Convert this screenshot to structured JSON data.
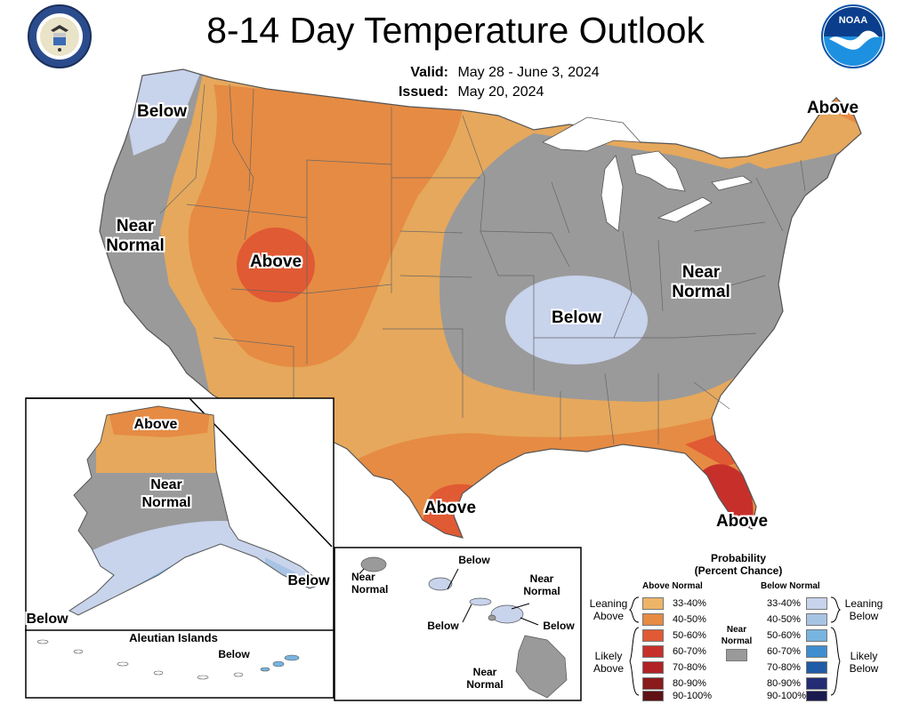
{
  "title": "8-14 Day Temperature Outlook",
  "valid_label": "Valid:",
  "valid_value": "May 28 - June 3, 2024",
  "issued_label": "Issued:",
  "issued_value": "May 20, 2024",
  "logos": {
    "left": "department-of-commerce-seal",
    "right": "noaa-logo",
    "noaa_text": "NOAA"
  },
  "colors": {
    "above_33_40": "#EDB468",
    "above_40_50": "#E68B43",
    "above_50_60": "#E05A34",
    "above_60_70": "#C7302A",
    "above_70_80": "#B02226",
    "above_80_90": "#8A1A1C",
    "above_90_100": "#5E1214",
    "near_normal": "#9A9A9A",
    "below_33_40": "#C8D3EC",
    "below_40_50": "#A8C4E4",
    "below_50_60": "#78B4E0",
    "below_60_70": "#3E8ECF",
    "below_70_80": "#1F5BA6",
    "below_80_90": "#232D75",
    "below_90_100": "#1B1A4F"
  },
  "map_labels": {
    "pnw_below": "Below",
    "west_near": "Near\nNormal",
    "rockies_above": "Above",
    "northeast_above": "Above",
    "midwest_below": "Below",
    "east_near": "Near\nNormal",
    "texas_above": "Above",
    "florida_above": "Above"
  },
  "alaska_labels": {
    "above": "Above",
    "near": "Near\nNormal",
    "below_left": "Below",
    "below_right": "Below",
    "aleutian_title": "Aleutian Islands",
    "aleutian_below": "Below"
  },
  "hawaii_labels": {
    "kauai_near": "Near\nNormal",
    "oahu_below": "Below",
    "maui_near": "Near\nNormal",
    "molokai_below": "Below",
    "maui_below": "Below",
    "bigisland_near": "Near\nNormal"
  },
  "legend": {
    "title": "Probability\n(Percent Chance)",
    "above_header": "Above Normal",
    "below_header": "Below Normal",
    "near_label": "Near\nNormal",
    "leaning_above": "Leaning\nAbove",
    "likely_above": "Likely\nAbove",
    "leaning_below": "Leaning\nBelow",
    "likely_below": "Likely\nBelow",
    "ranges": [
      "33-40%",
      "40-50%",
      "50-60%",
      "60-70%",
      "70-80%",
      "80-90%",
      "90-100%"
    ]
  }
}
